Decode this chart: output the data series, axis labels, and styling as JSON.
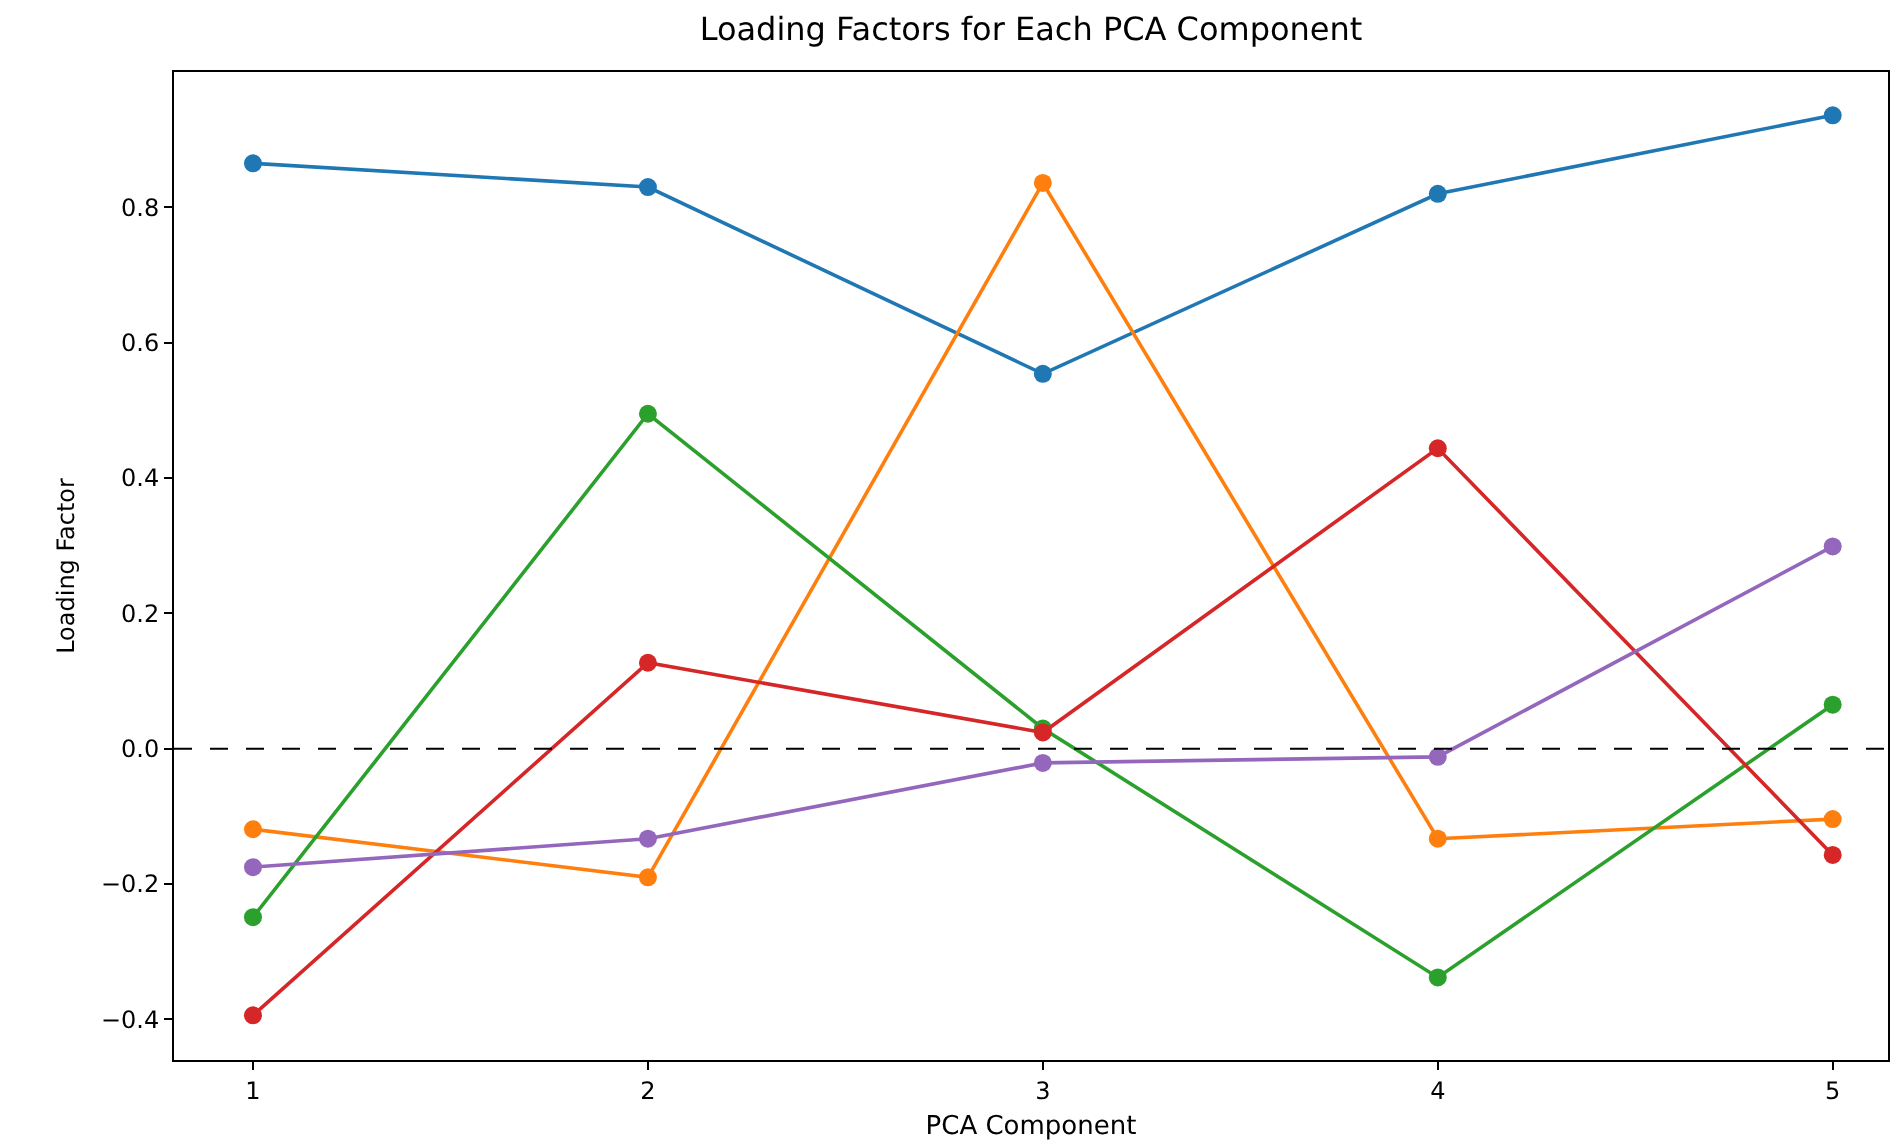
{
  "chart_data": {
    "type": "line",
    "title": "Loading Factors for Each PCA Component",
    "xlabel": "PCA Component",
    "ylabel": "Loading Factor",
    "x": [
      1,
      2,
      3,
      4,
      5
    ],
    "series": [
      {
        "color": "#1f77b4",
        "values": [
          0.865,
          0.83,
          0.554,
          0.82,
          0.936
        ]
      },
      {
        "color": "#ff7f0e",
        "values": [
          -0.119,
          -0.19,
          0.836,
          -0.133,
          -0.104
        ]
      },
      {
        "color": "#2ca02c",
        "values": [
          -0.249,
          0.495,
          0.03,
          -0.338,
          0.065
        ]
      },
      {
        "color": "#d62728",
        "values": [
          -0.394,
          0.127,
          0.024,
          0.444,
          -0.157
        ]
      },
      {
        "color": "#9467bd",
        "values": [
          -0.175,
          -0.133,
          -0.021,
          -0.012,
          0.299
        ]
      }
    ],
    "xlim": [
      0.8,
      5.14
    ],
    "xticks": [
      1,
      2,
      3,
      4,
      5
    ],
    "ylim": [
      -0.46,
      1.0
    ],
    "yticks": [
      {
        "value": -0.4,
        "label": "−0.4"
      },
      {
        "value": -0.2,
        "label": "−0.2"
      },
      {
        "value": 0,
        "label": "0.0"
      },
      {
        "value": 0.2,
        "label": "0.2"
      },
      {
        "value": 0.4,
        "label": "0.4"
      },
      {
        "value": 0.6,
        "label": "0.6"
      },
      {
        "value": 0.8,
        "label": "0.8"
      }
    ],
    "ref_lines": [
      {
        "axis": "y",
        "value": 0,
        "color": "#000000",
        "line_style": "dashed"
      }
    ],
    "grid": false,
    "marker": "circle",
    "line_style": "solid"
  }
}
